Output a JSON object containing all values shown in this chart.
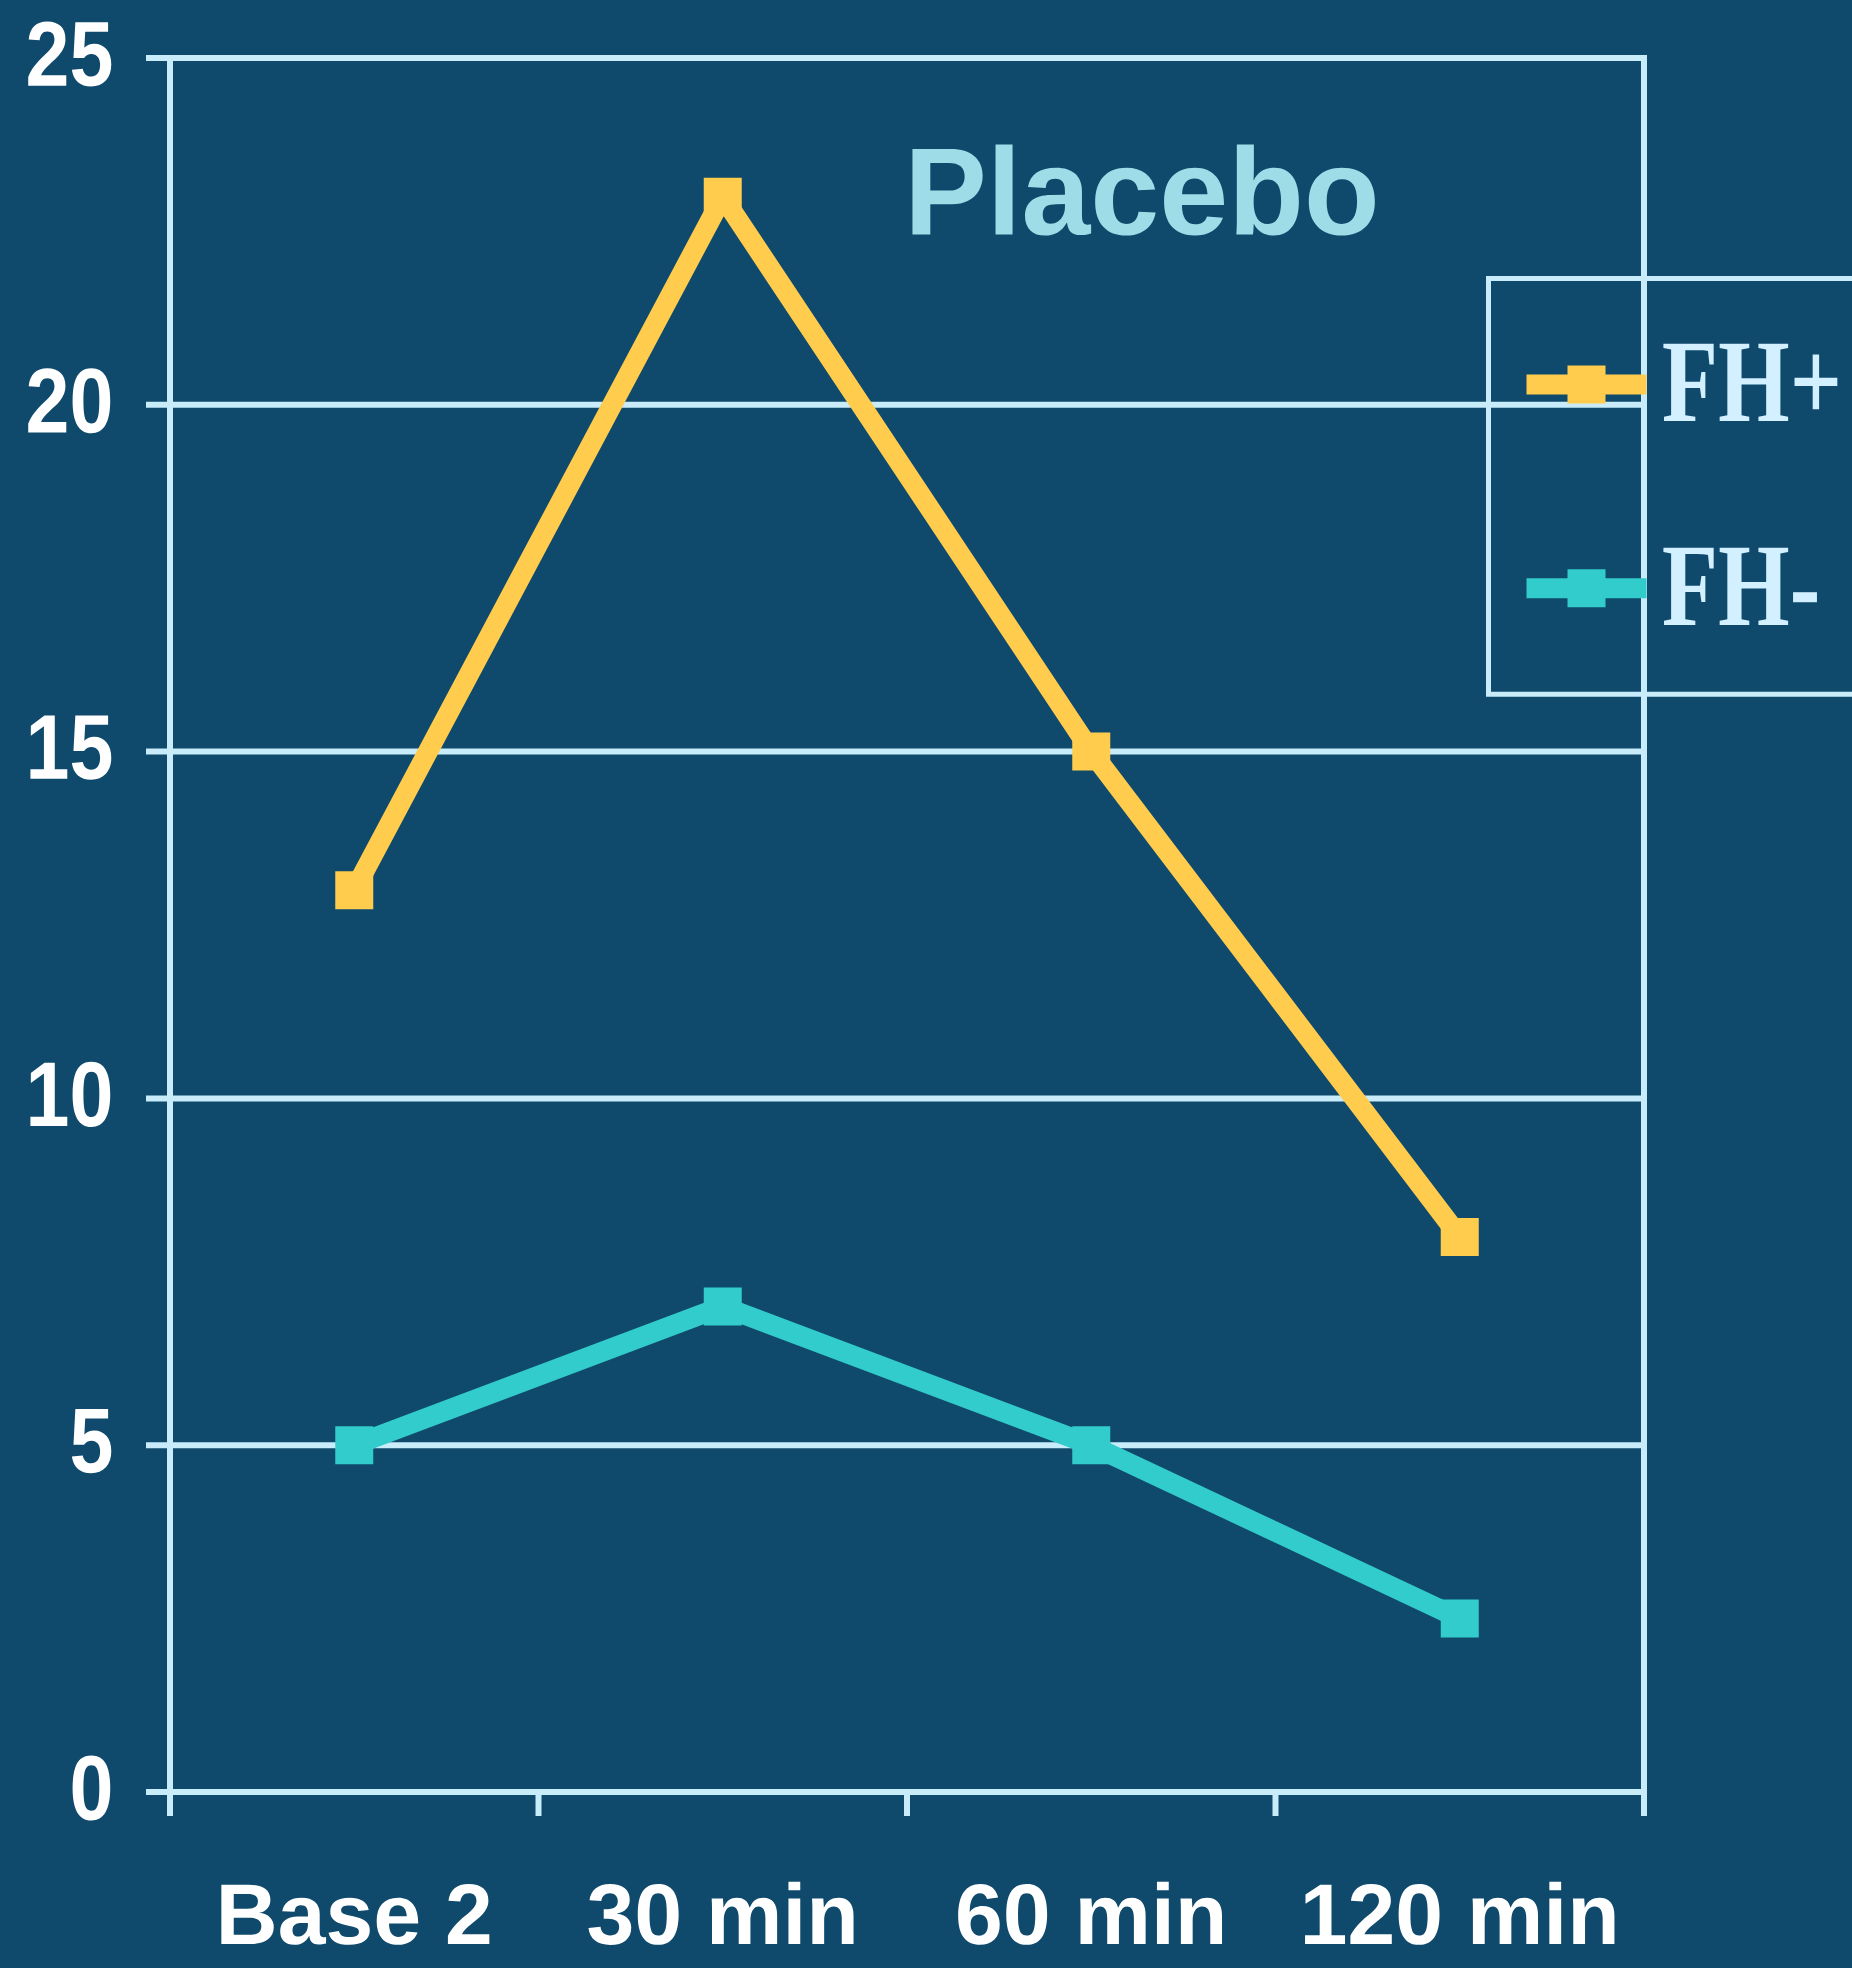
{
  "chart_data": {
    "type": "line",
    "title": "Placebo",
    "categories": [
      "Base 2",
      "30 min",
      "60 min",
      "120 min"
    ],
    "series": [
      {
        "name": "FH+",
        "color": "#ffcc4d",
        "values": [
          13,
          23,
          15,
          8
        ]
      },
      {
        "name": "FH-",
        "color": "#33cccc",
        "values": [
          5,
          7,
          5,
          2.5
        ]
      }
    ],
    "ylim": [
      0,
      25
    ],
    "yticks": [
      0,
      5,
      10,
      15,
      20,
      25
    ],
    "grid": "y",
    "legend": "right",
    "marker": "square",
    "line_style": "solid"
  }
}
